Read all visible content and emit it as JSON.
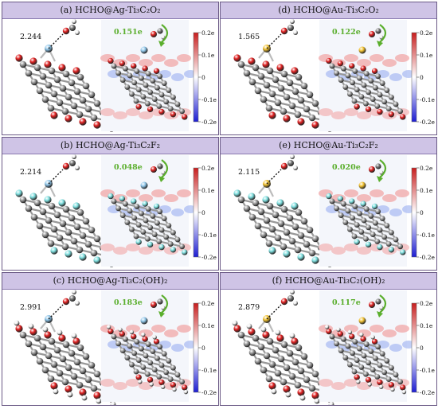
{
  "panels": [
    {
      "id": "a",
      "title": "(a) HCHO@Ag-Ti₃C₂O₂",
      "metal": "Ag",
      "term": "O",
      "distance": "2.244",
      "charge": "0.151e"
    },
    {
      "id": "d",
      "title": "(d) HCHO@Au-Ti₃C₂O₂",
      "metal": "Au",
      "term": "O",
      "distance": "1.565",
      "charge": "0.122e"
    },
    {
      "id": "b",
      "title": "(b) HCHO@Ag-Ti₃C₂F₂",
      "metal": "Ag",
      "term": "F",
      "distance": "2.214",
      "charge": "0.048e"
    },
    {
      "id": "e",
      "title": "(e) HCHO@Au-Ti₃C₂F₂",
      "metal": "Au",
      "term": "F",
      "distance": "2.115",
      "charge": "0.020e"
    },
    {
      "id": "c",
      "title": "(c) HCHO@Ag-Ti₃C₂(OH)₂",
      "metal": "Ag",
      "term": "OH",
      "distance": "2.991",
      "charge": "0.183e"
    },
    {
      "id": "f",
      "title": "(f) HCHO@Au-Ti₃C₂(OH)₂",
      "metal": "Au",
      "term": "OH",
      "distance": "2.879",
      "charge": "0.117e"
    }
  ],
  "colorbar_labels": [
    "0.2e",
    "0.1e",
    "0",
    "-0.1e",
    "-0.2e"
  ],
  "colors": {
    "header_bg": "#cfc4e6",
    "charge_text": "#5aae2c",
    "ag_atom": "#8fc6ea",
    "au_atom": "#f2c230",
    "o_atom": "#e02020",
    "f_atom": "#7fe0e0",
    "ti_atom": "#9a9a9a",
    "h_atom": "#f2f2f2",
    "cb_high": "#c81e1e",
    "cb_low": "#1e1ed2"
  }
}
